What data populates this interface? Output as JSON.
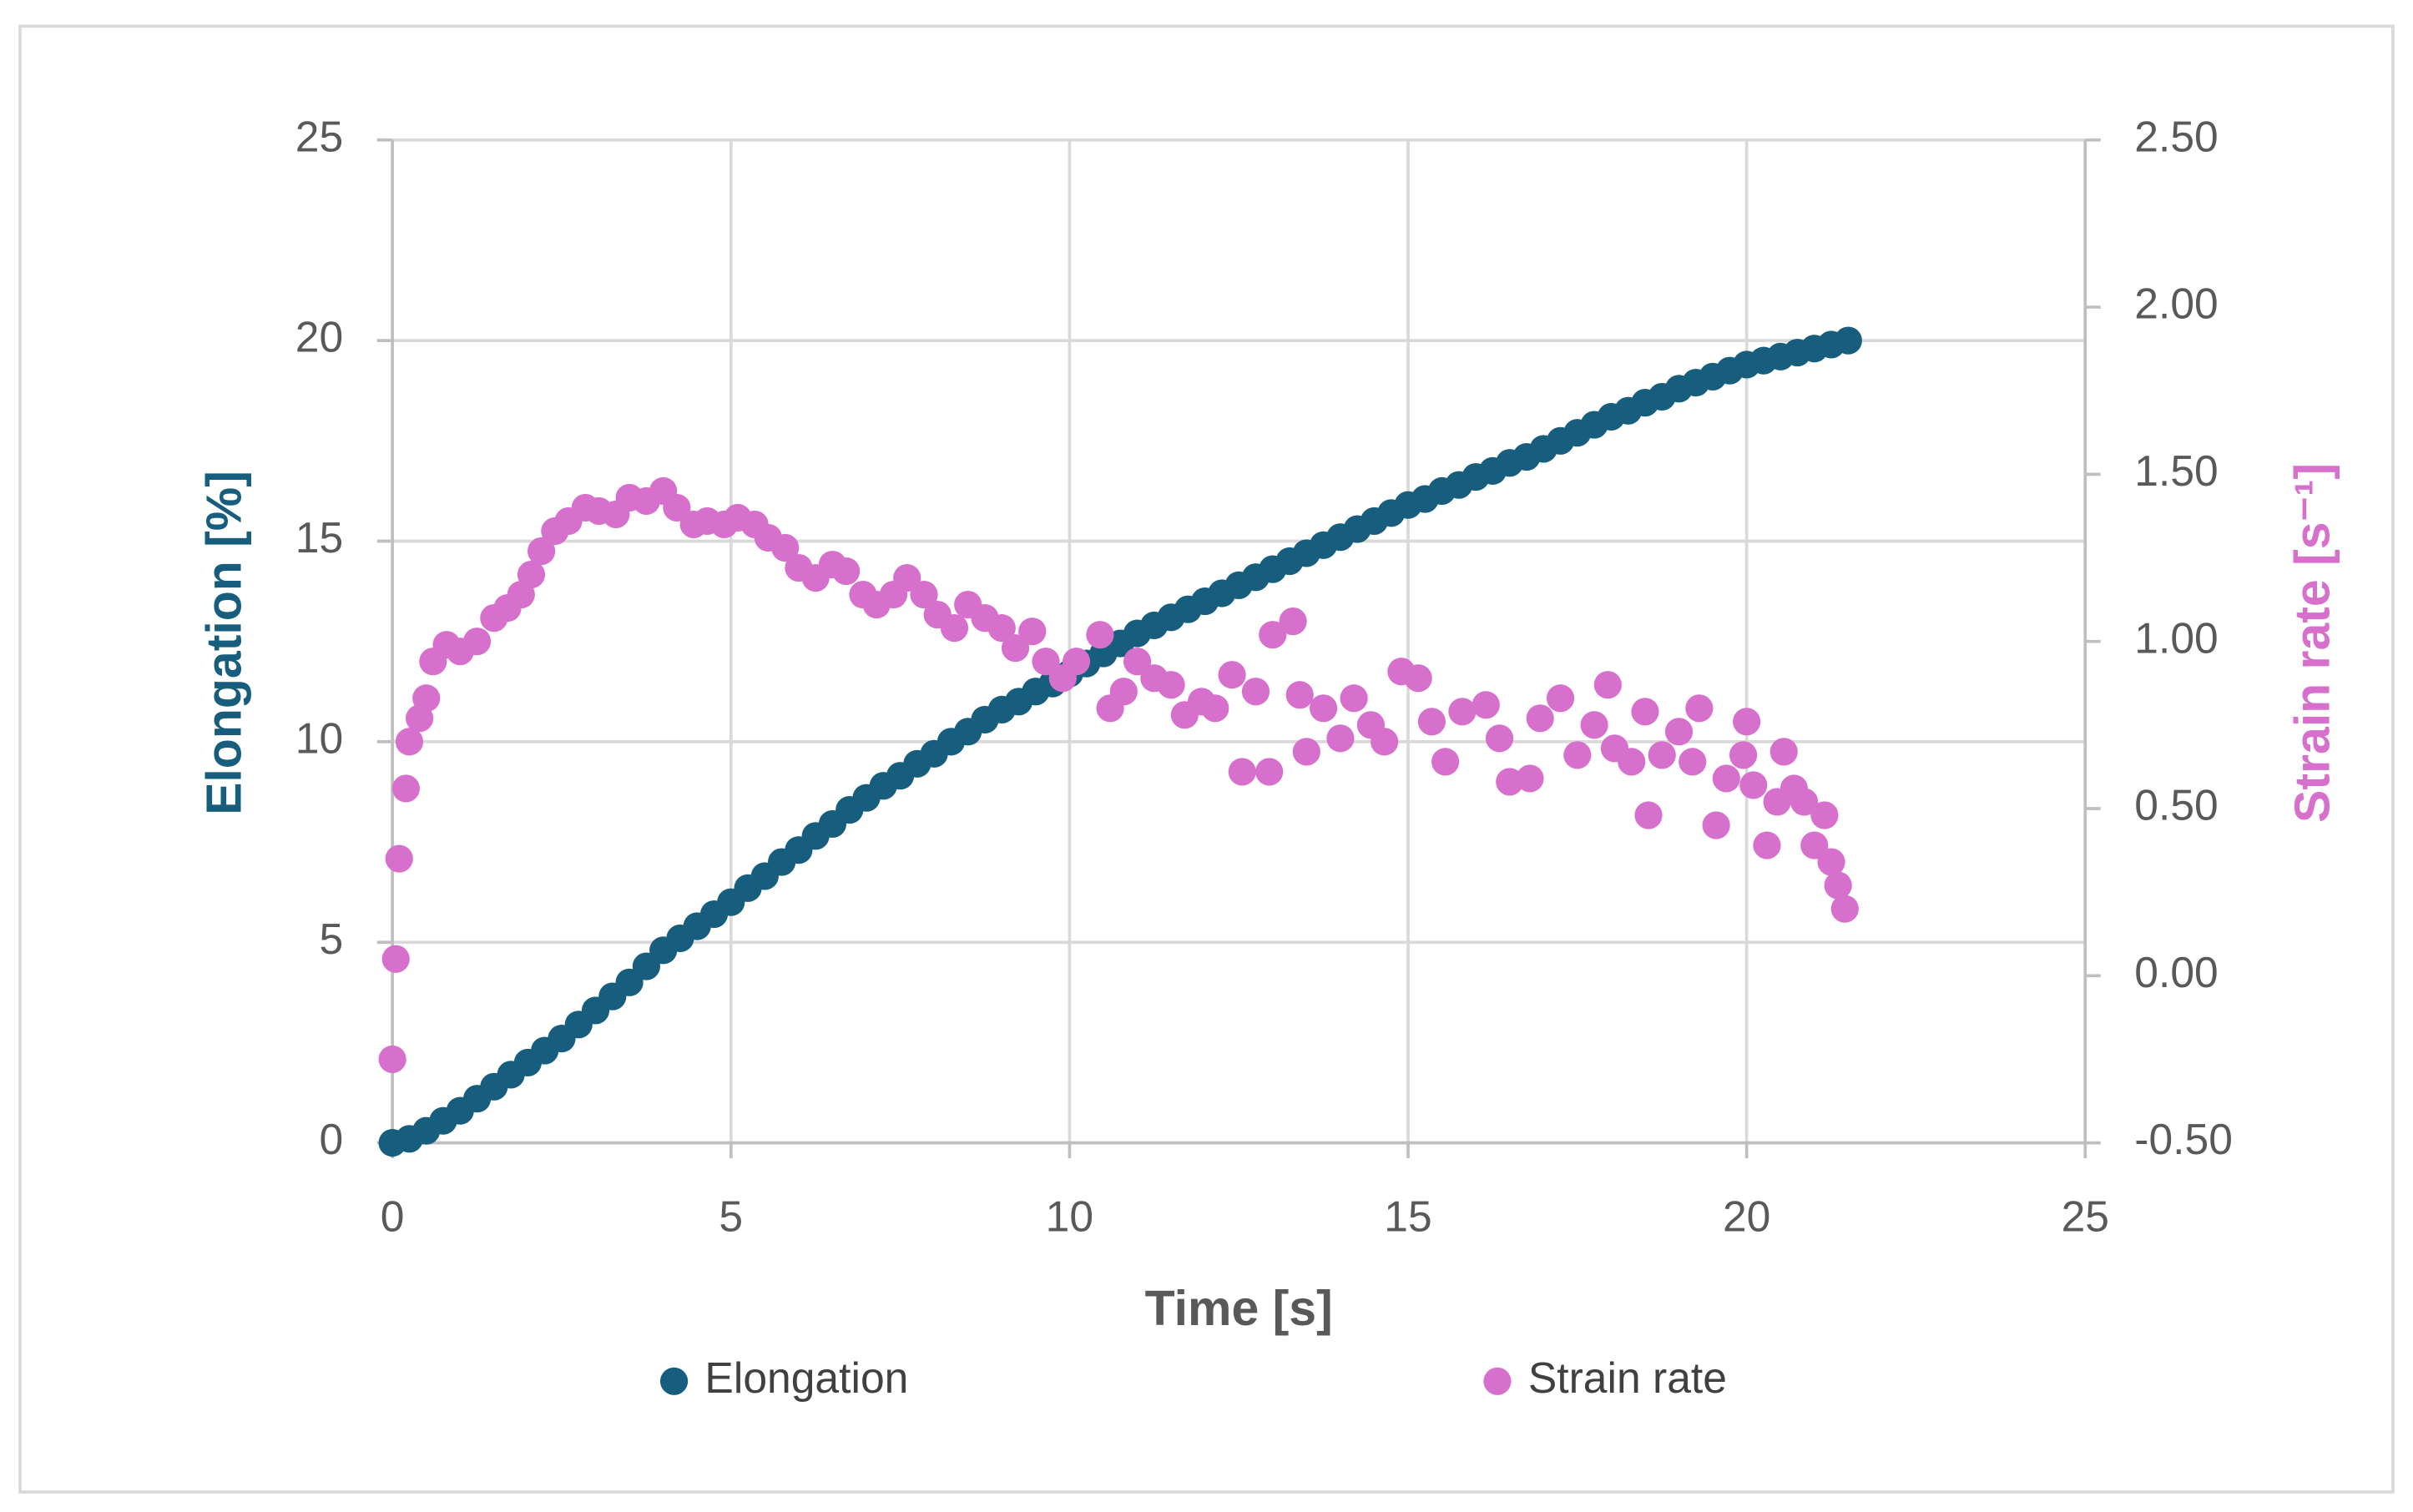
{
  "chart_data": {
    "type": "scatter",
    "x_label": "Time [s]",
    "y_label": "Elongation [%]",
    "y2_label": "Strain rate [s⁻¹]",
    "xlim": [
      0,
      25
    ],
    "xticks": [
      0,
      5,
      10,
      15,
      20,
      25
    ],
    "ylim": [
      0,
      25
    ],
    "yticks": [
      0,
      5,
      10,
      15,
      20,
      25
    ],
    "y2lim": [
      -0.5,
      2.5
    ],
    "y2ticks": [
      {
        "value": -0.5,
        "label": "-0.50"
      },
      {
        "value": 0,
        "label": "0.00"
      },
      {
        "value": 0.5,
        "label": "0.50"
      },
      {
        "value": 1,
        "label": "1.00"
      },
      {
        "value": 1.5,
        "label": "1.50"
      },
      {
        "value": 2,
        "label": "2.00"
      },
      {
        "value": 2.5,
        "label": "2.50"
      }
    ],
    "grid": true,
    "legend": "bottom",
    "series": [
      {
        "name": "Elongation",
        "color": "#175e7e",
        "axis": "y",
        "x": [
          0,
          0.25,
          0.5,
          0.75,
          1,
          1.25,
          1.5,
          1.75,
          2,
          2.25,
          2.5,
          2.75,
          3,
          3.25,
          3.5,
          3.75,
          4,
          4.25,
          4.5,
          4.75,
          5,
          5.25,
          5.5,
          5.75,
          6,
          6.25,
          6.5,
          6.75,
          7,
          7.25,
          7.5,
          7.75,
          8,
          8.25,
          8.5,
          8.75,
          9,
          9.25,
          9.5,
          9.75,
          10,
          10.25,
          10.5,
          10.75,
          11,
          11.25,
          11.5,
          11.75,
          12,
          12.25,
          12.5,
          12.75,
          13,
          13.25,
          13.5,
          13.75,
          14,
          14.25,
          14.5,
          14.75,
          15,
          15.25,
          15.5,
          15.75,
          16,
          16.25,
          16.5,
          16.75,
          17,
          17.25,
          17.5,
          17.75,
          18,
          18.25,
          18.5,
          18.75,
          19,
          19.25,
          19.5,
          19.75,
          20,
          20.25,
          20.5,
          20.75,
          21,
          21.25,
          21.5
        ],
        "values": [
          0,
          0.1,
          0.3,
          0.55,
          0.8,
          1.1,
          1.4,
          1.7,
          2.0,
          2.3,
          2.6,
          2.95,
          3.3,
          3.65,
          4.0,
          4.4,
          4.8,
          5.1,
          5.4,
          5.7,
          6.0,
          6.35,
          6.65,
          7.0,
          7.3,
          7.65,
          7.95,
          8.3,
          8.6,
          8.9,
          9.15,
          9.45,
          9.7,
          10.0,
          10.25,
          10.55,
          10.8,
          11.0,
          11.25,
          11.45,
          11.7,
          11.95,
          12.2,
          12.45,
          12.7,
          12.9,
          13.1,
          13.3,
          13.5,
          13.7,
          13.9,
          14.1,
          14.3,
          14.5,
          14.7,
          14.9,
          15.1,
          15.3,
          15.5,
          15.7,
          15.9,
          16.05,
          16.25,
          16.4,
          16.6,
          16.75,
          16.95,
          17.1,
          17.3,
          17.5,
          17.7,
          17.9,
          18.1,
          18.25,
          18.45,
          18.6,
          18.8,
          18.95,
          19.1,
          19.25,
          19.4,
          19.5,
          19.6,
          19.7,
          19.8,
          19.9,
          20.0
        ]
      },
      {
        "name": "Strain rate",
        "color": "#d670cc",
        "axis": "y2",
        "x": [
          0,
          0.05,
          0.1,
          0.2,
          0.25,
          0.4,
          0.5,
          0.6,
          0.8,
          1.0,
          1.25,
          1.5,
          1.7,
          1.9,
          2.05,
          2.2,
          2.4,
          2.6,
          2.85,
          3.05,
          3.3,
          3.5,
          3.75,
          4.0,
          4.2,
          4.45,
          4.65,
          4.9,
          5.1,
          5.35,
          5.55,
          5.8,
          6.0,
          6.25,
          6.5,
          6.7,
          6.95,
          7.15,
          7.4,
          7.6,
          7.85,
          8.05,
          8.3,
          8.5,
          8.75,
          9.0,
          9.2,
          9.45,
          9.65,
          9.9,
          10.1,
          10.45,
          10.6,
          10.8,
          11.0,
          11.25,
          11.5,
          11.7,
          11.95,
          12.15,
          12.4,
          12.55,
          12.75,
          12.95,
          13.0,
          13.3,
          13.4,
          13.5,
          13.75,
          14.0,
          14.2,
          14.45,
          14.65,
          14.9,
          15.15,
          15.35,
          15.55,
          15.8,
          16.15,
          16.35,
          16.5,
          16.8,
          16.95,
          17.25,
          17.5,
          17.75,
          17.95,
          18.05,
          18.3,
          18.5,
          18.55,
          18.75,
          19.0,
          19.2,
          19.3,
          19.55,
          19.7,
          19.95,
          20.0,
          20.1,
          20.3,
          20.45,
          20.55,
          20.7,
          20.85,
          21.0,
          21.15,
          21.25,
          21.35,
          21.45
        ],
        "values": [
          -0.25,
          0.05,
          0.35,
          0.56,
          0.7,
          0.77,
          0.83,
          0.94,
          0.99,
          0.97,
          1.0,
          1.07,
          1.1,
          1.14,
          1.2,
          1.27,
          1.33,
          1.36,
          1.4,
          1.39,
          1.38,
          1.43,
          1.42,
          1.45,
          1.4,
          1.35,
          1.36,
          1.35,
          1.37,
          1.35,
          1.31,
          1.28,
          1.22,
          1.19,
          1.23,
          1.21,
          1.14,
          1.11,
          1.14,
          1.19,
          1.14,
          1.08,
          1.04,
          1.11,
          1.07,
          1.04,
          0.98,
          1.03,
          0.94,
          0.89,
          0.94,
          1.02,
          0.8,
          0.85,
          0.94,
          0.89,
          0.87,
          0.78,
          0.82,
          0.8,
          0.9,
          0.61,
          0.85,
          0.61,
          1.02,
          1.06,
          0.84,
          0.67,
          0.8,
          0.71,
          0.83,
          0.75,
          0.7,
          0.91,
          0.89,
          0.76,
          0.64,
          0.79,
          0.81,
          0.71,
          0.58,
          0.59,
          0.77,
          0.83,
          0.66,
          0.75,
          0.87,
          0.68,
          0.64,
          0.79,
          0.48,
          0.66,
          0.73,
          0.64,
          0.8,
          0.45,
          0.59,
          0.66,
          0.76,
          0.57,
          0.39,
          0.52,
          0.67,
          0.56,
          0.52,
          0.39,
          0.48,
          0.34,
          0.27,
          0.2
        ]
      }
    ]
  }
}
